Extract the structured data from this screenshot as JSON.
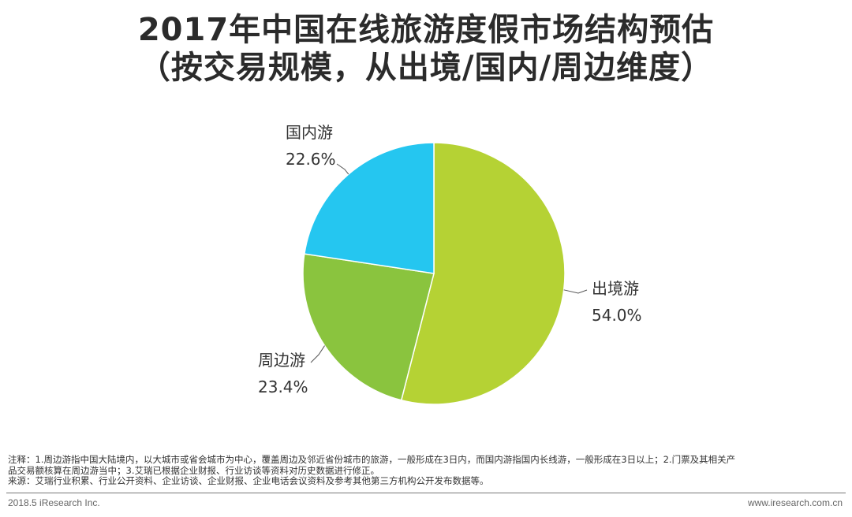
{
  "title_line1": "2017年中国在线旅游度假市场结构预估",
  "title_line2": "（按交易规模，从出境/国内/周边维度）",
  "chart_data": {
    "type": "pie",
    "title": "2017年中国在线旅游度假市场结构预估（按交易规模，从出境/国内/周边维度）",
    "unit": "%",
    "slices": [
      {
        "label": "出境游",
        "value": 54.0,
        "value_label": "54.0%",
        "color": "#b5d234"
      },
      {
        "label": "周边游",
        "value": 23.4,
        "value_label": "23.4%",
        "color": "#8ac43e"
      },
      {
        "label": "国内游",
        "value": 22.6,
        "value_label": "22.6%",
        "color": "#25c6f0"
      }
    ]
  },
  "notes": {
    "line1": "注释：1.周边游指中国大陆境内，以大城市或省会城市为中心，覆盖周边及邻近省份城市的旅游，一般形成在3日内，而国内游指国内长线游，一般形成在3日以上；2.门票及其相关产",
    "line2": "品交易额核算在周边游当中；3.艾瑞已根据企业财报、行业访谈等资料对历史数据进行修正。",
    "source": "来源：艾瑞行业积累、行业公开资料、企业访谈、企业财报、企业电话会议资料及参考其他第三方机构公开发布数据等。"
  },
  "footer": {
    "left": "2018.5 iResearch Inc.",
    "right": "www.iresearch.com.cn"
  }
}
